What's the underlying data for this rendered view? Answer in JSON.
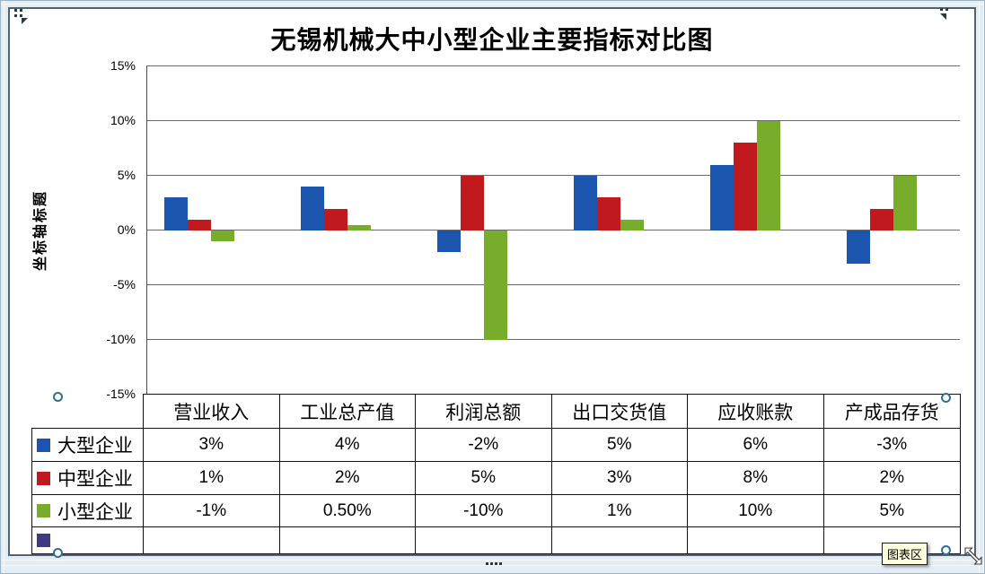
{
  "window": {
    "tooltip": "图表区"
  },
  "chart": {
    "title": "无锡机械大中小型企业主要指标对比图",
    "y_axis_title": "坐标轴标题",
    "y_ticks": [
      "15%",
      "10%",
      "5%",
      "0%",
      "-5%",
      "-10%",
      "-15%"
    ]
  },
  "chart_data": {
    "type": "bar",
    "title": "无锡机械大中小型企业主要指标对比图",
    "y_axis_title": "坐标轴标题",
    "categories": [
      "营业收入",
      "工业总产值",
      "利润总额",
      "出口交货值",
      "应收账款",
      "产成品存货"
    ],
    "series": [
      {
        "name": "大型企业",
        "color": "#1c55ae",
        "values": [
          3,
          4,
          -2,
          5,
          6,
          -3
        ],
        "display_labels": [
          "3%",
          "4%",
          "-2%",
          "5%",
          "6%",
          "-3%"
        ]
      },
      {
        "name": "中型企业",
        "color": "#c01a1e",
        "values": [
          1,
          2,
          5,
          3,
          8,
          2
        ],
        "display_labels": [
          "1%",
          "2%",
          "5%",
          "3%",
          "8%",
          "2%"
        ]
      },
      {
        "name": "小型企业",
        "color": "#77ad2b",
        "values": [
          -1,
          0.5,
          -10,
          1,
          10,
          5
        ],
        "display_labels": [
          "-1%",
          "0.50%",
          "-10%",
          "1%",
          "10%",
          "5%"
        ]
      },
      {
        "name": "",
        "color": "#413886",
        "values": [
          null,
          null,
          null,
          null,
          null,
          null
        ],
        "display_labels": [
          "",
          "",
          "",
          "",
          "",
          ""
        ]
      }
    ],
    "ylim": [
      -15,
      15
    ],
    "ytick_step": 5,
    "unit": "%",
    "grid": true,
    "legend_position": "left-of-data-table"
  }
}
